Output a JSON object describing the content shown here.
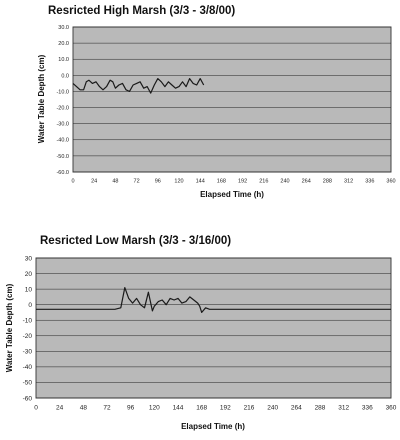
{
  "chart_data": [
    {
      "type": "line",
      "title": "Resricted High Marsh (3/3 - 3/8/00)",
      "xlabel": "Elapsed Time (h)",
      "ylabel": "Water Table Depth (cm)",
      "xlim": [
        0,
        360
      ],
      "ylim": [
        -60,
        30
      ],
      "x_ticks": [
        0,
        24,
        48,
        72,
        96,
        120,
        144,
        168,
        192,
        216,
        240,
        264,
        288,
        312,
        336,
        360
      ],
      "y_ticks": [
        30,
        20,
        10,
        0,
        -10,
        -20,
        -30,
        -40,
        -50,
        -60
      ],
      "x_tick_labels": [
        "0",
        "24",
        "48",
        "72",
        "96",
        "120",
        "144",
        "168",
        "192",
        "216",
        "240",
        "264",
        "288",
        "312",
        "336",
        "360"
      ],
      "y_tick_labels": [
        "30.0",
        "20.0",
        "10.0",
        "0.0",
        "-10.0",
        "-20.0",
        "-30.0",
        "-40.0",
        "-50.0",
        "-60.0"
      ],
      "grid": true,
      "series": [
        {
          "x": [
            0,
            4,
            8,
            12,
            15,
            18,
            22,
            26,
            30,
            34,
            38,
            42,
            45,
            48,
            52,
            56,
            60,
            64,
            68,
            72,
            76,
            80,
            84,
            88,
            92,
            96,
            100,
            104,
            108,
            112,
            116,
            120,
            124,
            128,
            132,
            136,
            140,
            144,
            148
          ],
          "y": [
            -5,
            -7,
            -9,
            -9,
            -4,
            -3,
            -5,
            -4,
            -7,
            -9,
            -7,
            -3,
            -4,
            -8,
            -6,
            -5,
            -9,
            -10,
            -6,
            -5,
            -4,
            -8,
            -7,
            -11,
            -6,
            -2,
            -4,
            -7,
            -4,
            -6,
            -8,
            -7,
            -4,
            -7,
            -2,
            -5,
            -6,
            -2,
            -6
          ]
        }
      ]
    },
    {
      "type": "line",
      "title": "Resricted Low Marsh (3/3 - 3/16/00)",
      "xlabel": "Elapsed Time (h)",
      "ylabel": "Water Table Depth (cm)",
      "xlim": [
        0,
        360
      ],
      "ylim": [
        -60,
        30
      ],
      "x_ticks": [
        0,
        24,
        48,
        72,
        96,
        120,
        144,
        168,
        192,
        216,
        240,
        264,
        288,
        312,
        336,
        360
      ],
      "y_ticks": [
        30,
        20,
        10,
        0,
        -10,
        -20,
        -30,
        -40,
        -50,
        -60
      ],
      "x_tick_labels": [
        "0",
        "24",
        "48",
        "72",
        "96",
        "120",
        "144",
        "168",
        "192",
        "216",
        "240",
        "264",
        "288",
        "312",
        "336",
        "360"
      ],
      "y_tick_labels": [
        "30",
        "20",
        "10",
        "0",
        "-10",
        "-20",
        "-30",
        "-40",
        "-50",
        "-60"
      ],
      "grid": true,
      "series": [
        {
          "x": [
            0,
            24,
            48,
            72,
            80,
            86,
            90,
            94,
            98,
            102,
            106,
            110,
            114,
            118,
            120,
            124,
            128,
            132,
            136,
            140,
            144,
            148,
            152,
            156,
            160,
            164,
            166,
            168,
            172,
            176,
            200,
            240,
            280,
            320,
            360
          ],
          "y": [
            -3,
            -3,
            -3,
            -3,
            -3,
            -2,
            11,
            4,
            1,
            4,
            0,
            -2,
            8,
            -4,
            -1,
            2,
            3,
            0,
            4,
            3,
            4,
            1,
            2,
            5,
            3,
            1,
            -1,
            -5,
            -2,
            -3,
            -3,
            -3,
            -3,
            -3,
            -3
          ]
        }
      ]
    }
  ]
}
